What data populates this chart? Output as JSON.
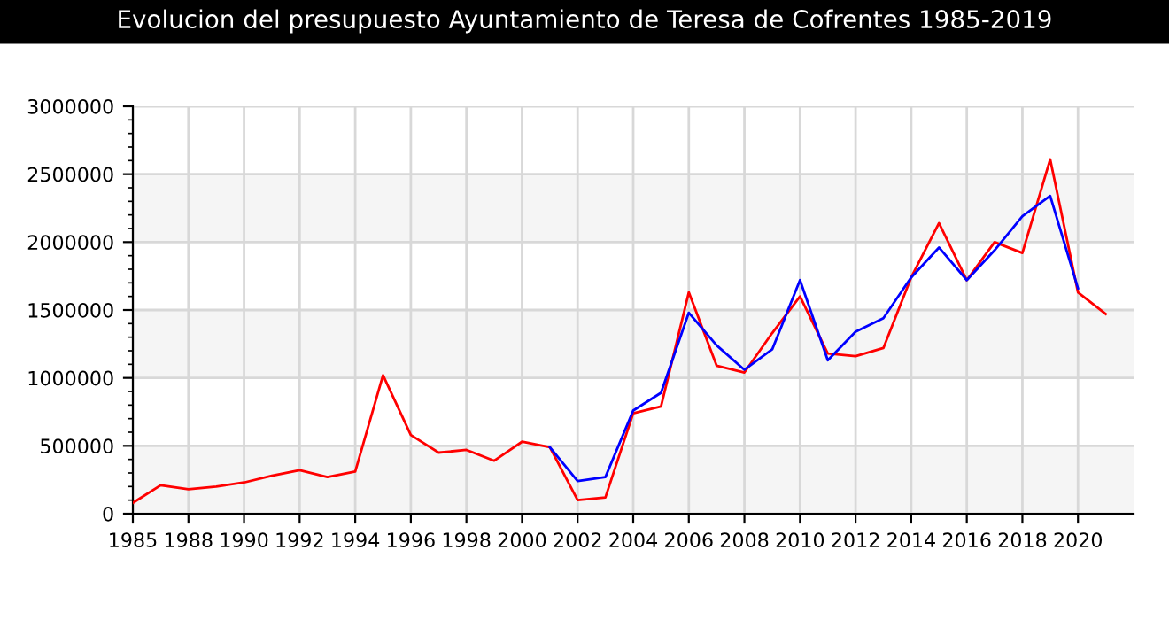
{
  "chart_data": {
    "type": "line",
    "title": "Evolucion del presupuesto Ayuntamiento de Teresa de Cofrentes 1985-2019",
    "categories": [
      "1985",
      null,
      "1988",
      null,
      "1990",
      null,
      "1992",
      null,
      "1994",
      null,
      "1996",
      null,
      "1998",
      null,
      "2000",
      null,
      "2002",
      null,
      "2004",
      null,
      "2006",
      null,
      "2008",
      null,
      "2010",
      null,
      "2012",
      null,
      "2014",
      null,
      "2016",
      null,
      "2018",
      null,
      "2020",
      null
    ],
    "series": [
      {
        "color": "#ff0000",
        "values": [
          80000,
          210000,
          180000,
          200000,
          230000,
          280000,
          320000,
          270000,
          310000,
          1020000,
          580000,
          450000,
          470000,
          390000,
          530000,
          490000,
          100000,
          120000,
          740000,
          790000,
          1630000,
          1090000,
          1040000,
          1330000,
          1600000,
          1180000,
          1160000,
          1220000,
          1740000,
          2140000,
          1720000,
          2000000,
          1920000,
          2610000,
          1630000,
          1470000
        ]
      },
      {
        "color": "#0000ff",
        "values": [
          null,
          null,
          null,
          null,
          null,
          null,
          null,
          null,
          null,
          null,
          null,
          null,
          null,
          null,
          null,
          490000,
          240000,
          270000,
          760000,
          890000,
          1480000,
          1240000,
          1060000,
          1210000,
          1720000,
          1130000,
          1340000,
          1440000,
          1740000,
          1960000,
          1720000,
          1940000,
          2190000,
          2340000,
          1660000,
          null
        ]
      }
    ],
    "ylim": [
      0,
      3000000
    ],
    "yticks": [
      0,
      500000,
      1000000,
      1500000,
      2000000,
      2500000,
      3000000
    ],
    "bands": [
      {
        "axis": "y",
        "from": 0,
        "to": 500000,
        "color": "#f5f5f5"
      },
      {
        "axis": "y",
        "from": 1000000,
        "to": 1500000,
        "color": "#f5f5f5"
      },
      {
        "axis": "y",
        "from": 2000000,
        "to": 2500000,
        "color": "#f5f5f5"
      }
    ],
    "grid": true,
    "legend": false,
    "marker": "none",
    "line_style": "solid"
  }
}
